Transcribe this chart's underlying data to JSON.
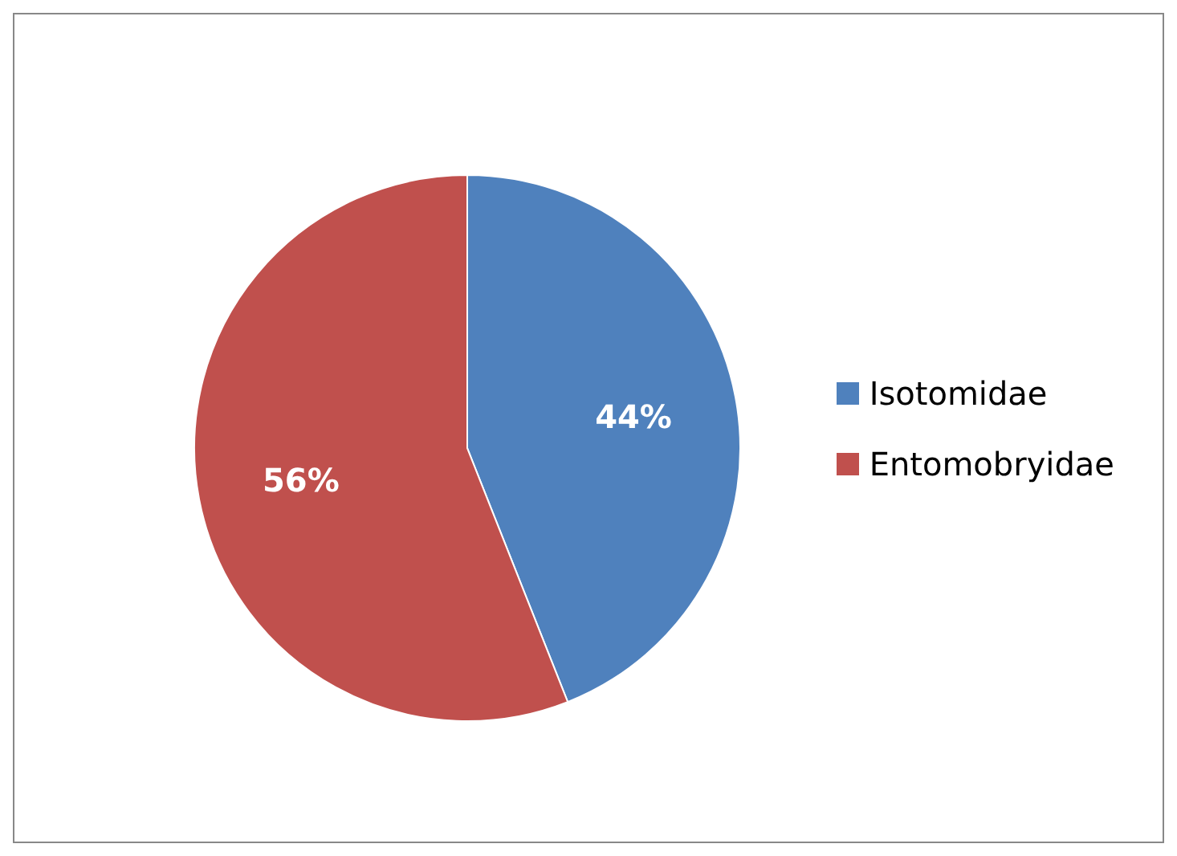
{
  "chart_data": {
    "type": "pie",
    "categories": [
      "Isotomidae",
      "Entomobryidae"
    ],
    "values": [
      44,
      56
    ],
    "colors": [
      "#4f81bd",
      "#c0504d"
    ],
    "value_labels": [
      "44%",
      "56%"
    ],
    "legend": "right"
  }
}
